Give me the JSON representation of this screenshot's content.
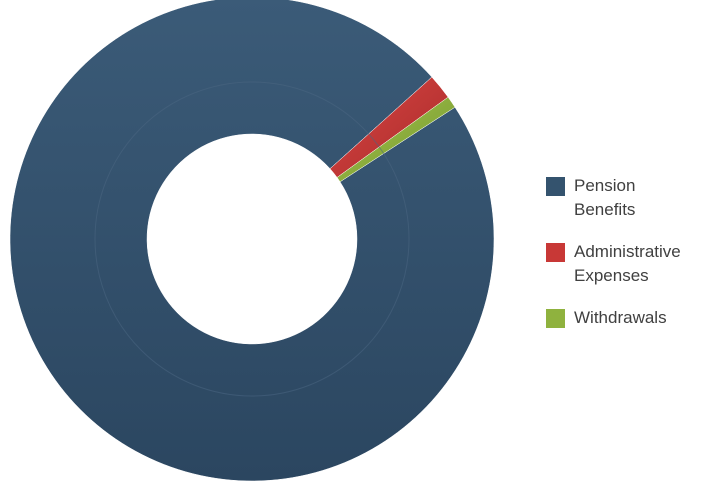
{
  "chart_data": {
    "type": "pie",
    "title": "",
    "donut": true,
    "legend_position": "right",
    "series": [
      {
        "name": "Pension Benefits",
        "value": 97.5,
        "color": "#34536e"
      },
      {
        "name": "Administrative Expenses",
        "value": 1.7,
        "color": "#c83836"
      },
      {
        "name": "Withdrawals",
        "value": 0.8,
        "color": "#8fb23e"
      }
    ]
  },
  "legend": {
    "items": [
      {
        "label": "Pension Benefits",
        "color": "#34536e"
      },
      {
        "label": "Administrative Expenses",
        "color": "#c83836"
      },
      {
        "label": "Withdrawals",
        "color": "#8fb23e"
      }
    ]
  }
}
